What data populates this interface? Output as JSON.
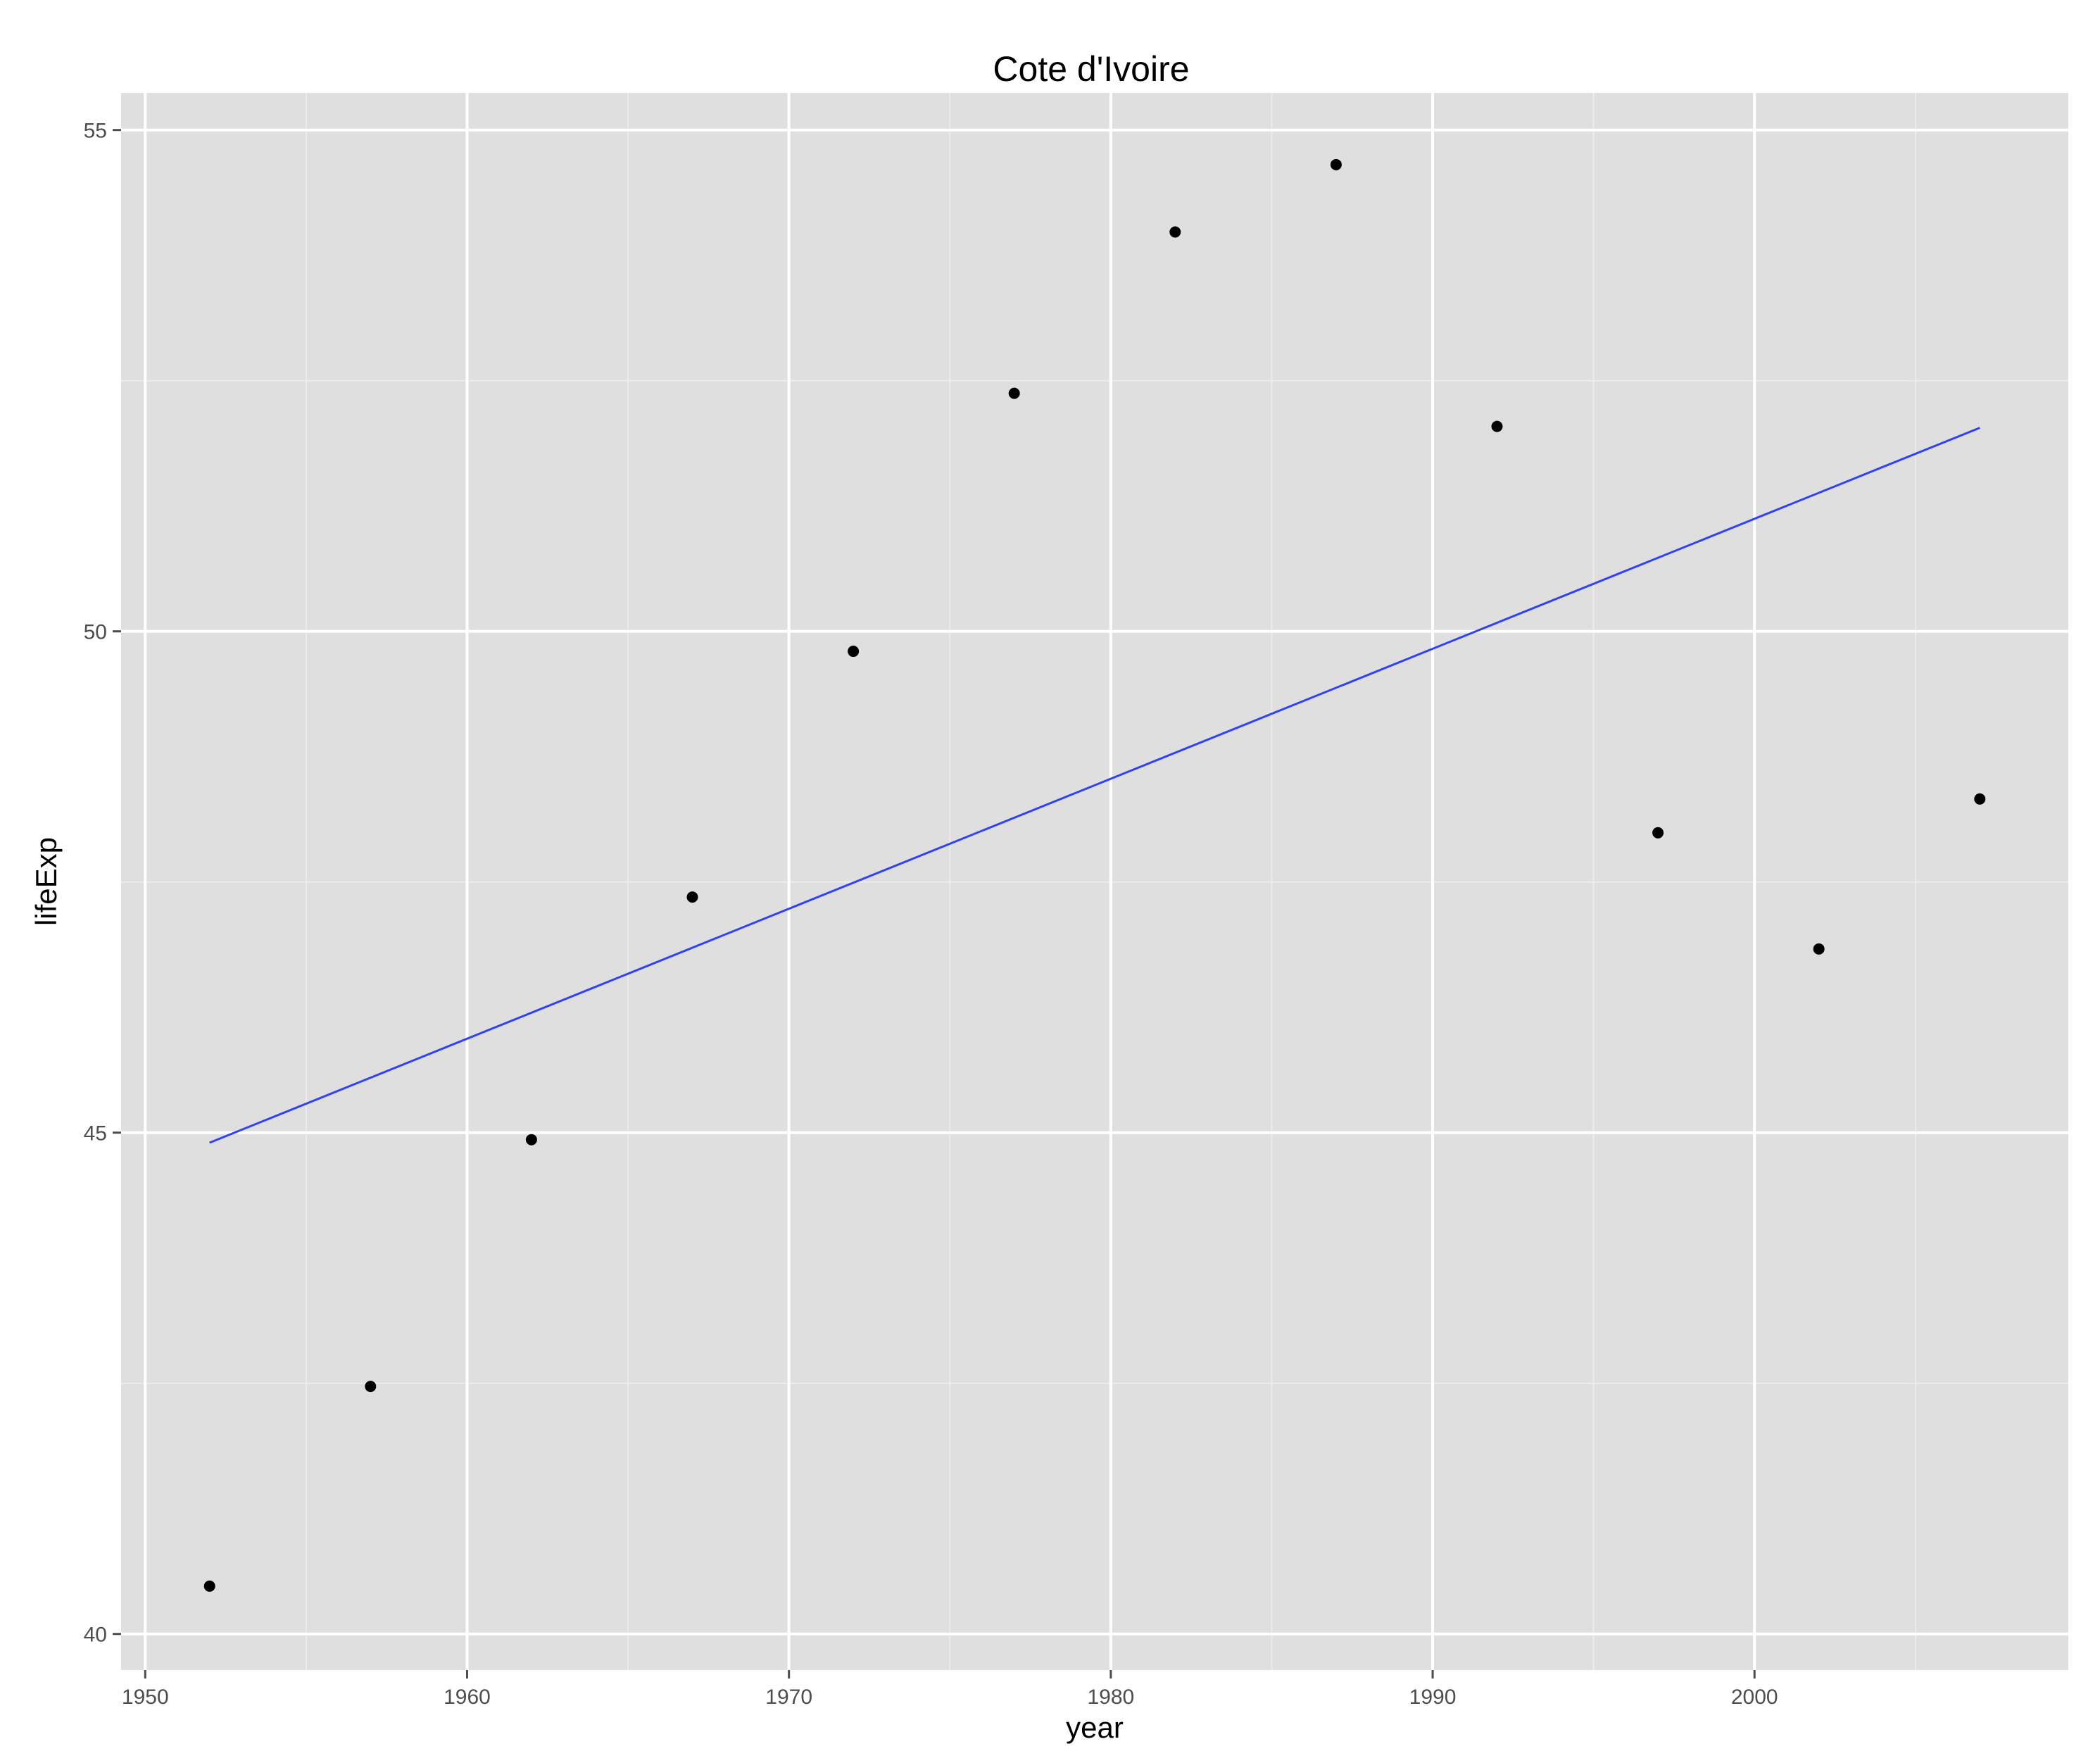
{
  "chart_data": {
    "type": "scatter",
    "title": "Cote d'Ivoire",
    "xlabel": "year",
    "ylabel": "lifeExp",
    "xlim": [
      1949.25,
      2009.75
    ],
    "ylim": [
      39.64,
      55.37
    ],
    "x_ticks": [
      "1950",
      "1960",
      "1970",
      "1980",
      "1990",
      "2000"
    ],
    "y_ticks": [
      "40",
      "45",
      "50",
      "55"
    ],
    "grid": true,
    "legend": "none",
    "series": [
      {
        "type": "scatter",
        "x": [
          1952,
          1957,
          1962,
          1967,
          1972,
          1977,
          1982,
          1987,
          1992,
          1997,
          2002,
          2007
        ],
        "y": [
          40.477,
          42.469,
          44.93,
          47.35,
          49.801,
          52.374,
          53.983,
          54.655,
          52.044,
          47.991,
          46.832,
          48.328
        ]
      },
      {
        "type": "line",
        "x": [
          1952,
          2007
        ],
        "y": [
          44.9,
          52.03
        ]
      }
    ],
    "colors": {
      "panel": "#dfdfdf",
      "grid_major": "#ffffff",
      "grid_minor": "#ececec",
      "points": "#000000",
      "fit_line": "#3040ff"
    }
  }
}
